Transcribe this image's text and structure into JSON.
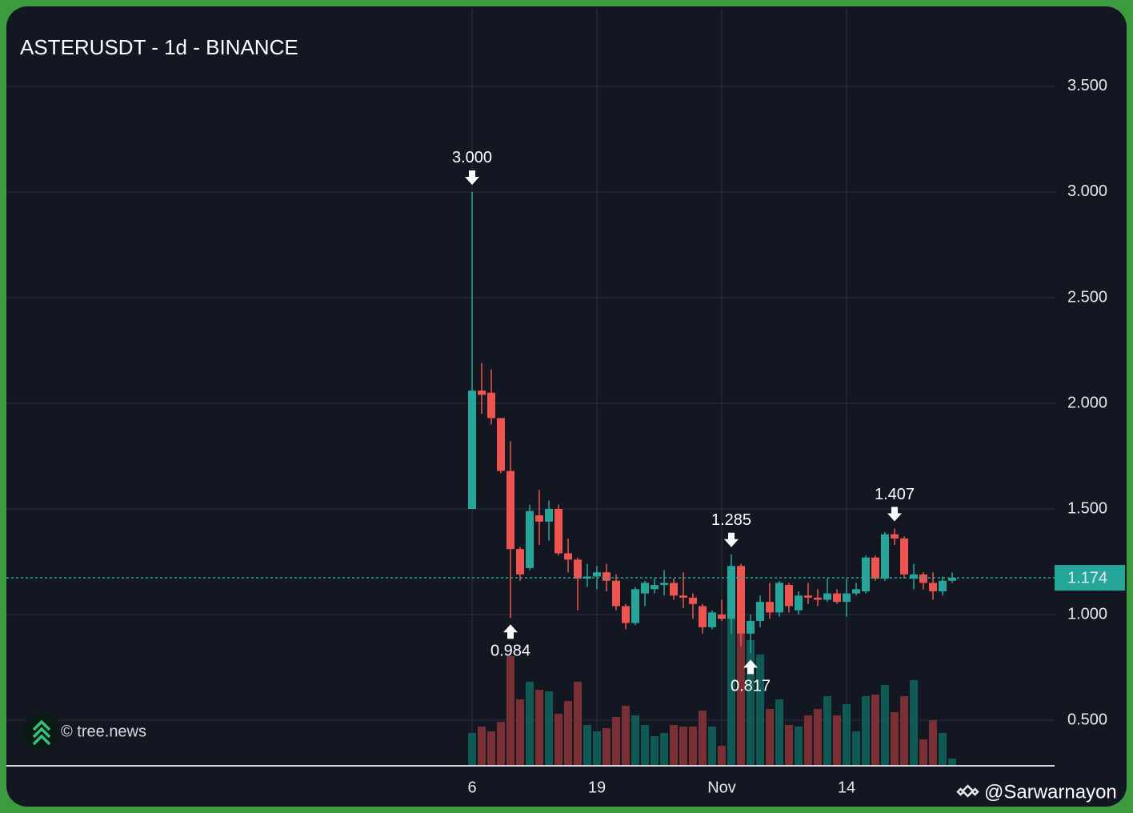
{
  "chart_data": {
    "type": "candlestick",
    "title": "ASTERUSDT - 1d - BINANCE",
    "watermark": "© tree.news",
    "credit": "@Sarwarnayon",
    "categories": [
      "6",
      null,
      null,
      null,
      null,
      null,
      null,
      null,
      null,
      null,
      null,
      null,
      null,
      "19",
      null,
      null,
      null,
      null,
      null,
      null,
      null,
      null,
      null,
      null,
      null,
      null,
      "Nov",
      null,
      null,
      null,
      null,
      null,
      null,
      null,
      null,
      null,
      null,
      null,
      null,
      "14",
      null,
      null,
      null,
      null,
      null,
      null,
      null,
      null,
      null,
      null,
      null
    ],
    "open": [
      1.5,
      2.06,
      2.05,
      1.93,
      1.68,
      1.31,
      1.22,
      1.47,
      1.44,
      1.5,
      1.29,
      1.26,
      1.17,
      1.18,
      1.2,
      1.16,
      1.04,
      0.96,
      1.1,
      1.12,
      1.14,
      1.15,
      1.09,
      1.08,
      1.04,
      0.94,
      1.0,
      0.98,
      1.23,
      0.91,
      0.97,
      1.06,
      1.01,
      1.14,
      1.02,
      1.09,
      1.08,
      1.07,
      1.1,
      1.06,
      1.1,
      1.11,
      1.27,
      1.17,
      1.38,
      1.36,
      1.17,
      1.19,
      1.15,
      1.11,
      1.16
    ],
    "high": [
      3.0,
      2.19,
      2.16,
      1.93,
      1.82,
      1.32,
      1.52,
      1.59,
      1.54,
      1.52,
      1.36,
      1.27,
      1.24,
      1.23,
      1.24,
      1.19,
      1.05,
      1.13,
      1.16,
      1.17,
      1.21,
      1.17,
      1.2,
      1.1,
      1.05,
      1.02,
      1.07,
      1.285,
      1.24,
      1.0,
      1.09,
      1.15,
      1.16,
      1.15,
      1.11,
      1.15,
      1.12,
      1.17,
      1.12,
      1.17,
      1.15,
      1.28,
      1.28,
      1.39,
      1.407,
      1.37,
      1.24,
      1.2,
      1.2,
      1.18,
      1.2
    ],
    "low": [
      1.5,
      1.95,
      1.9,
      1.67,
      0.984,
      1.16,
      1.21,
      1.33,
      1.35,
      1.28,
      1.2,
      1.02,
      1.13,
      1.12,
      1.11,
      1.02,
      0.93,
      0.95,
      1.04,
      1.1,
      1.09,
      1.07,
      1.03,
      0.98,
      0.91,
      0.93,
      0.97,
      0.91,
      0.85,
      0.817,
      0.94,
      0.98,
      0.99,
      1.01,
      1.0,
      1.05,
      1.04,
      1.06,
      1.05,
      0.99,
      1.09,
      1.1,
      1.16,
      1.16,
      1.33,
      1.17,
      1.12,
      1.12,
      1.07,
      1.09,
      1.15
    ],
    "close": [
      2.06,
      2.04,
      1.93,
      1.68,
      1.31,
      1.19,
      1.49,
      1.44,
      1.5,
      1.29,
      1.26,
      1.17,
      1.18,
      1.2,
      1.16,
      1.04,
      0.96,
      1.12,
      1.15,
      1.14,
      1.15,
      1.09,
      1.08,
      1.05,
      0.94,
      1.01,
      0.98,
      1.23,
      0.91,
      0.97,
      1.06,
      1.01,
      1.15,
      1.04,
      1.09,
      1.08,
      1.07,
      1.1,
      1.06,
      1.1,
      1.12,
      1.27,
      1.17,
      1.38,
      1.36,
      1.19,
      1.19,
      1.15,
      1.11,
      1.16,
      1.174
    ],
    "volume": [
      20,
      24,
      21,
      27,
      68,
      41,
      52,
      47,
      46,
      32,
      40,
      52,
      25,
      21,
      23,
      30,
      37,
      31,
      25,
      18,
      20,
      25,
      24,
      24,
      34,
      24,
      12,
      93,
      83,
      78,
      69,
      35,
      41,
      25,
      24,
      31,
      35,
      43,
      31,
      38,
      21,
      43,
      44,
      50,
      33,
      43,
      53,
      16,
      28,
      20,
      4
    ],
    "ylim": [
      0.288,
      3.871
    ],
    "vlim": [
      0,
      100
    ],
    "yticks": [
      {
        "value": 0.5,
        "label": "0.500"
      },
      {
        "value": 1.0,
        "label": "1.000"
      },
      {
        "value": 1.5,
        "label": "1.500"
      },
      {
        "value": 2.0,
        "label": "2.000"
      },
      {
        "value": 2.5,
        "label": "2.500"
      },
      {
        "value": 3.0,
        "label": "3.000"
      },
      {
        "value": 3.5,
        "label": "3.500"
      }
    ],
    "annotations": [
      {
        "value": 3.0,
        "label": "3.000",
        "position": "above"
      },
      {
        "value": 0.984,
        "label": "0.984",
        "position": "below"
      },
      {
        "value": 1.285,
        "label": "1.285",
        "position": "above"
      },
      {
        "value": 0.817,
        "label": "0.817",
        "position": "below"
      },
      {
        "value": 1.407,
        "label": "1.407",
        "position": "above"
      }
    ],
    "last_price": {
      "value": 1.174,
      "label": "1.174"
    },
    "up_color": "#26a69a",
    "down_color": "#ef5350",
    "volume_up_color": "#0f5a54",
    "volume_down_color": "#7a2f35",
    "grid": true
  }
}
